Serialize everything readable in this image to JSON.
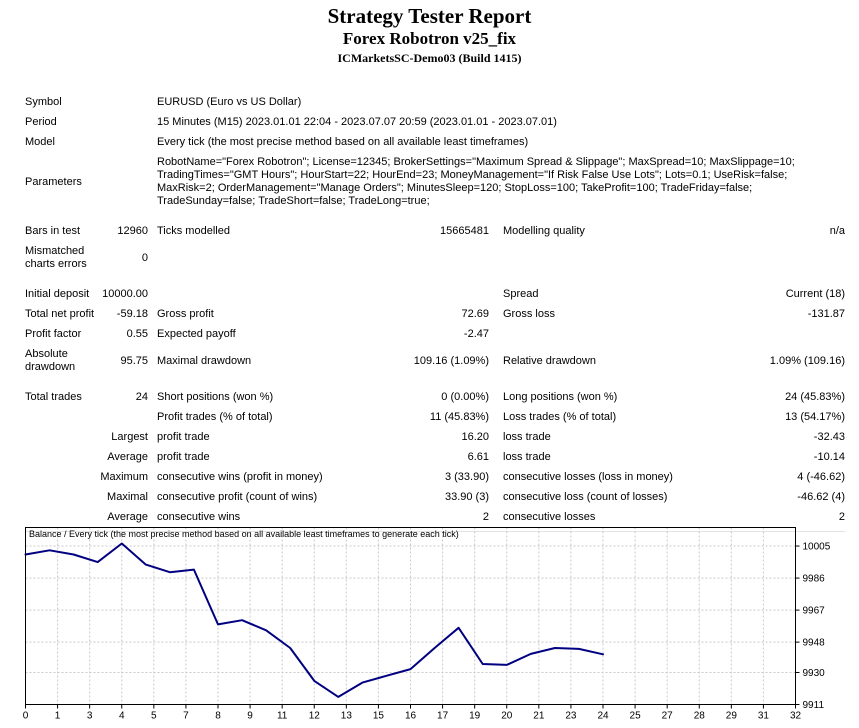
{
  "header": {
    "title": "Strategy Tester Report",
    "subtitle": "Forex Robotron v25_fix",
    "build": "ICMarketsSC-Demo03 (Build 1415)"
  },
  "report_rows": [
    {
      "type": "info",
      "a": "Symbol",
      "c": "EURUSD (Euro vs US Dollar)"
    },
    {
      "type": "info",
      "a": "Period",
      "c": "15 Minutes (M15) 2023.01.01 22:04 - 2023.07.07 20:59 (2023.01.01 - 2023.07.01)"
    },
    {
      "type": "info",
      "a": "Model",
      "c": "Every tick (the most precise method based on all available least timeframes)"
    },
    {
      "type": "info",
      "a": "Parameters",
      "c": "RobotName=\"Forex Robotron\"; License=12345; BrokerSettings=\"Maximum Spread & Slippage\"; MaxSpread=10; MaxSlippage=10; TradingTimes=\"GMT Hours\"; HourStart=22; HourEnd=23; MoneyManagement=\"If Risk False Use Lots\"; Lots=0.1; UseRisk=false; MaxRisk=2; OrderManagement=\"Manage Orders\"; MinutesSleep=120; StopLoss=100; TakeProfit=100; TradeFriday=false; TradeSunday=false; TradeShort=false; TradeLong=true;"
    },
    {
      "type": "gap"
    },
    {
      "type": "stat",
      "a": "Bars in test",
      "b": "12960",
      "c": "Ticks modelled",
      "d": "15665481",
      "e": "Modelling quality",
      "f": "n/a"
    },
    {
      "type": "stat",
      "a": "Mismatched charts errors",
      "b": "0",
      "c": "",
      "d": "",
      "e": "",
      "f": ""
    },
    {
      "type": "gap"
    },
    {
      "type": "stat",
      "a": "Initial deposit",
      "b": "10000.00",
      "c": "",
      "d": "",
      "e": "Spread",
      "f": "Current (18)"
    },
    {
      "type": "stat",
      "a": "Total net profit",
      "b": "-59.18",
      "c": "Gross profit",
      "d": "72.69",
      "e": "Gross loss",
      "f": "-131.87"
    },
    {
      "type": "stat",
      "a": "Profit factor",
      "b": "0.55",
      "c": "Expected payoff",
      "d": "-2.47",
      "e": "",
      "f": ""
    },
    {
      "type": "stat",
      "a": "Absolute drawdown",
      "b": "95.75",
      "c": "Maximal drawdown",
      "d": "109.16 (1.09%)",
      "e": "Relative drawdown",
      "f": "1.09% (109.16)"
    },
    {
      "type": "gap"
    },
    {
      "type": "stat",
      "a": "Total trades",
      "b": "24",
      "c": "Short positions (won %)",
      "d": "0 (0.00%)",
      "e": "Long positions (won %)",
      "f": "24 (45.83%)"
    },
    {
      "type": "stat",
      "a": "",
      "b": "",
      "c": "Profit trades (% of total)",
      "d": "11 (45.83%)",
      "e": "Loss trades (% of total)",
      "f": "13 (54.17%)"
    },
    {
      "type": "stat",
      "a": "",
      "b": "Largest",
      "c": "profit trade",
      "d": "16.20",
      "e": "loss trade",
      "f": "-32.43"
    },
    {
      "type": "stat",
      "a": "",
      "b": "Average",
      "c": "profit trade",
      "d": "6.61",
      "e": "loss trade",
      "f": "-10.14"
    },
    {
      "type": "stat",
      "a": "",
      "b": "Maximum",
      "c": "consecutive wins (profit in money)",
      "d": "3 (33.90)",
      "e": "consecutive losses (loss in money)",
      "f": "4 (-46.62)"
    },
    {
      "type": "stat",
      "a": "",
      "b": "Maximal",
      "c": "consecutive profit (count of wins)",
      "d": "33.90 (3)",
      "e": "consecutive loss (count of losses)",
      "f": "-46.62 (4)"
    },
    {
      "type": "stat",
      "a": "",
      "b": "Average",
      "c": "consecutive wins",
      "d": "2",
      "e": "consecutive losses",
      "f": "2"
    }
  ],
  "chart_data": {
    "type": "line",
    "title": "Balance / Every tick (the most precise method based on all available least timeframes to generate each tick)",
    "xlabel": "",
    "ylabel": "",
    "x_axis_range": [
      0,
      32
    ],
    "x_tick_labels": [
      "0",
      "1",
      "3",
      "4",
      "5",
      "7",
      "8",
      "9",
      "11",
      "12",
      "13",
      "15",
      "16",
      "17",
      "19",
      "20",
      "21",
      "23",
      "24",
      "25",
      "27",
      "28",
      "29",
      "31",
      "32"
    ],
    "y_ticks": [
      10005,
      9986,
      9967,
      9948,
      9930,
      9911
    ],
    "y_range_drawn": [
      9911,
      10016
    ],
    "grid": true,
    "legend_position": "none",
    "line_color": "#000080",
    "grid_color": "#c9c9c9",
    "series": [
      {
        "name": "Balance",
        "x": [
          0,
          1,
          2,
          3,
          4,
          5,
          6,
          7,
          8,
          9,
          10,
          11,
          12,
          13,
          14,
          15,
          16,
          17,
          18,
          19,
          20,
          21,
          22,
          23,
          24
        ],
        "values": [
          10000.0,
          10002.5,
          10000.0,
          9995.5,
          10006.5,
          9994.0,
          9989.5,
          9991.0,
          9958.5,
          9961.0,
          9955.0,
          9944.5,
          9925.0,
          9915.5,
          9924.0,
          9928.0,
          9932.0,
          9944.5,
          9956.5,
          9935.0,
          9934.5,
          9941.0,
          9944.5,
          9944.0,
          9940.8
        ]
      }
    ]
  }
}
